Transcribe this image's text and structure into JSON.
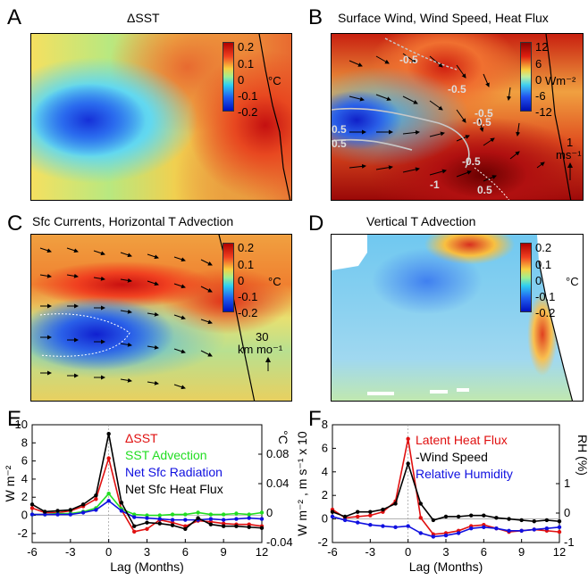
{
  "panels": {
    "A": {
      "letter": "A",
      "title": "ΔSST",
      "colorbar": {
        "ticks": [
          "0.2",
          "0.1",
          "0",
          "-0.1",
          "-0.2"
        ],
        "unit": "°C"
      }
    },
    "B": {
      "letter": "B",
      "title": "Surface Wind, Wind Speed, Heat Flux",
      "colorbar": {
        "ticks": [
          "12",
          "6",
          "0",
          "-6",
          "-12"
        ],
        "unit": "Wm⁻²"
      },
      "vector_scale": {
        "value": "1",
        "unit": "ms⁻¹"
      },
      "contour_labels": [
        "-0.5",
        "-0.5",
        "-0.5",
        "0.5",
        "0.5",
        "-0.5",
        "-0.5",
        "0.5",
        "-1"
      ]
    },
    "C": {
      "letter": "C",
      "title": "Sfc Currents, Horizontal T Advection",
      "colorbar": {
        "ticks": [
          "0.2",
          "0.1",
          "0",
          "-0.1",
          "-0.2"
        ],
        "unit": "°C"
      },
      "vector_scale": {
        "value": "30",
        "unit": "km mo⁻¹"
      }
    },
    "D": {
      "letter": "D",
      "title": "Vertical T Advection",
      "colorbar": {
        "ticks": [
          "0.2",
          "0.1",
          "0",
          "-0.1",
          "-0.2"
        ],
        "unit": "°C"
      }
    },
    "E": {
      "letter": "E"
    },
    "F": {
      "letter": "F"
    }
  },
  "colors": {
    "deep_blue": "#1a1adc",
    "cyan": "#3ec8e8",
    "yellow": "#f5e85a",
    "orange": "#f09030",
    "red": "#cc1010",
    "dark_red": "#7a0000"
  },
  "chart_data": [
    {
      "type": "line",
      "panel": "E",
      "xlabel": "Lag (Months)",
      "ylabel": "W m⁻²",
      "y2label": "°C",
      "xlim": [
        -6,
        12
      ],
      "ylim": [
        -3,
        10
      ],
      "y2lim": [
        -0.04,
        0.12
      ],
      "xticks": [
        -6,
        -3,
        0,
        3,
        6,
        9,
        12
      ],
      "yticks": [
        -2,
        0,
        2,
        4,
        6,
        8,
        10
      ],
      "y2ticks": [
        -0.04,
        0,
        0.04,
        0.08
      ],
      "y2ticklabels": [
        "-0.04",
        "0",
        "0.04",
        "0.08"
      ],
      "x": [
        -6,
        -5,
        -4,
        -3,
        -2,
        -1,
        0,
        1,
        2,
        3,
        4,
        5,
        6,
        7,
        8,
        9,
        10,
        11,
        12
      ],
      "series": [
        {
          "name": "ΔSST",
          "color": "#e01010",
          "values": [
            0.8,
            0.3,
            0.3,
            0.5,
            1.0,
            1.8,
            6.3,
            0.6,
            -1.8,
            -1.5,
            -0.5,
            -0.8,
            -1.2,
            -0.6,
            -0.7,
            -0.9,
            -1.0,
            -1.0,
            -1.2
          ]
        },
        {
          "name": "SST Advection",
          "color": "#22dd22",
          "values": [
            0.1,
            0.1,
            0.2,
            0.2,
            0.4,
            0.8,
            2.4,
            0.7,
            0.1,
            0.0,
            0.0,
            0.1,
            0.1,
            0.3,
            0.1,
            0.1,
            0.2,
            0.1,
            0.3
          ]
        },
        {
          "name": "Net Sfc Radiation",
          "color": "#1010e0",
          "values": [
            0.1,
            0.1,
            0.1,
            0.1,
            0.3,
            0.6,
            1.6,
            0.5,
            -0.2,
            -0.3,
            -0.4,
            -0.5,
            -0.5,
            -0.5,
            -0.4,
            -0.5,
            -0.4,
            -0.3,
            -0.4
          ]
        },
        {
          "name": "Net Sfc Heat Flux",
          "color": "#000000",
          "values": [
            1.2,
            0.4,
            0.5,
            0.6,
            1.2,
            2.2,
            9.0,
            1.4,
            -1.2,
            -0.8,
            -0.9,
            -1.1,
            -1.5,
            -0.3,
            -1.0,
            -1.2,
            -1.2,
            -1.3,
            -1.4
          ]
        }
      ]
    },
    {
      "type": "line",
      "panel": "F",
      "xlabel": "Lag (Months)",
      "ylabel": "W m⁻² , m s⁻¹ x 10",
      "y2label": "RH (%)",
      "xlim": [
        -6,
        12
      ],
      "ylim": [
        -2,
        8
      ],
      "y2lim": [
        -1,
        3
      ],
      "xticks": [
        -6,
        -3,
        0,
        3,
        6,
        9,
        12
      ],
      "yticks": [
        -2,
        0,
        2,
        4,
        6,
        8
      ],
      "y2ticks": [
        -1,
        0,
        1
      ],
      "y2ticklabels": [
        "-1",
        "0",
        "1"
      ],
      "x": [
        -6,
        -5,
        -4,
        -3,
        -2,
        -1,
        0,
        1,
        2,
        3,
        4,
        5,
        6,
        7,
        8,
        9,
        10,
        11,
        12
      ],
      "series": [
        {
          "name": "Latent Heat Flux",
          "color": "#e01010",
          "values": [
            0.8,
            0.1,
            0.2,
            0.3,
            0.6,
            1.5,
            6.8,
            0.1,
            -1.3,
            -1.2,
            -1.0,
            -0.6,
            -0.5,
            -0.8,
            -1.1,
            -1.0,
            -0.9,
            -1.0,
            -1.1
          ]
        },
        {
          "name": "-Wind Speed",
          "color": "#000000",
          "values": [
            0.6,
            0.2,
            0.6,
            0.6,
            0.8,
            1.3,
            4.7,
            1.3,
            -0.1,
            0.2,
            0.2,
            0.3,
            0.3,
            0.1,
            0.0,
            -0.1,
            -0.2,
            -0.1,
            -0.2
          ]
        },
        {
          "name": "Relative Humidity",
          "color": "#1010e0",
          "values": [
            0.2,
            -0.1,
            -0.3,
            -0.5,
            -0.6,
            -0.7,
            -0.6,
            -1.2,
            -1.5,
            -1.4,
            -1.2,
            -0.8,
            -0.7,
            -0.8,
            -1.0,
            -1.0,
            -0.9,
            -0.8,
            -0.7
          ]
        }
      ]
    }
  ]
}
